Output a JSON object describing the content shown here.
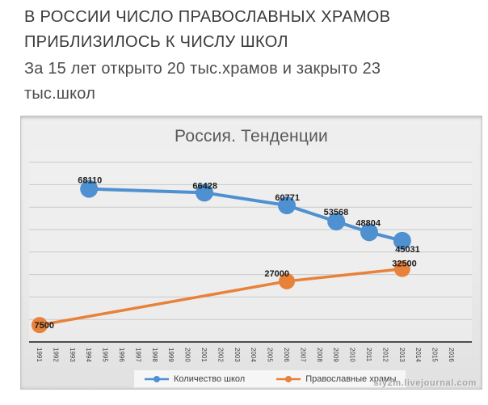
{
  "header": {
    "title_line1": "В РОССИИ ЧИСЛО ПРАВОСЛАВНЫХ ХРАМОВ",
    "title_line2": "ПРИБЛИЗИЛОСЬ К ЧИСЛУ ШКОЛ",
    "subtitle_line1": "За 15 лет открыто 20 тыс.храмов и закрыто 23",
    "subtitle_line2": "тыс.школ"
  },
  "chart_data": {
    "type": "line",
    "title": "Россия. Тенденции",
    "x_ticks": [
      "1991",
      "1992",
      "1993",
      "1994",
      "1995",
      "1996",
      "1997",
      "1998",
      "1999",
      "2000",
      "2001",
      "2002",
      "2003",
      "2004",
      "2005",
      "2006",
      "2007",
      "2008",
      "2009",
      "2010",
      "2011",
      "2012",
      "2013",
      "2014",
      "2015",
      "2016"
    ],
    "xlabel": "",
    "ylabel": "",
    "ylim": [
      0,
      82000
    ],
    "gridline_step": 10000,
    "grid": true,
    "legend_position": "bottom",
    "series": [
      {
        "name": "Количество школ",
        "color": "#4f90d1",
        "points": [
          [
            1994,
            68110
          ],
          [
            2001,
            66428
          ],
          [
            2006,
            60771
          ],
          [
            2009,
            53568
          ],
          [
            2011,
            48804
          ],
          [
            2013,
            45031
          ]
        ]
      },
      {
        "name": "Православные храмы",
        "color": "#e8813a",
        "points": [
          [
            1991,
            7500
          ],
          [
            2006,
            27000
          ],
          [
            2013,
            32500
          ]
        ]
      }
    ],
    "colors": {
      "gridline": "#c9c9c9",
      "axis": "#4d4d4d",
      "data_label": "#1b1b1b",
      "tick_label": "#414141"
    },
    "watermark": "sly2m.livejournal.com"
  }
}
